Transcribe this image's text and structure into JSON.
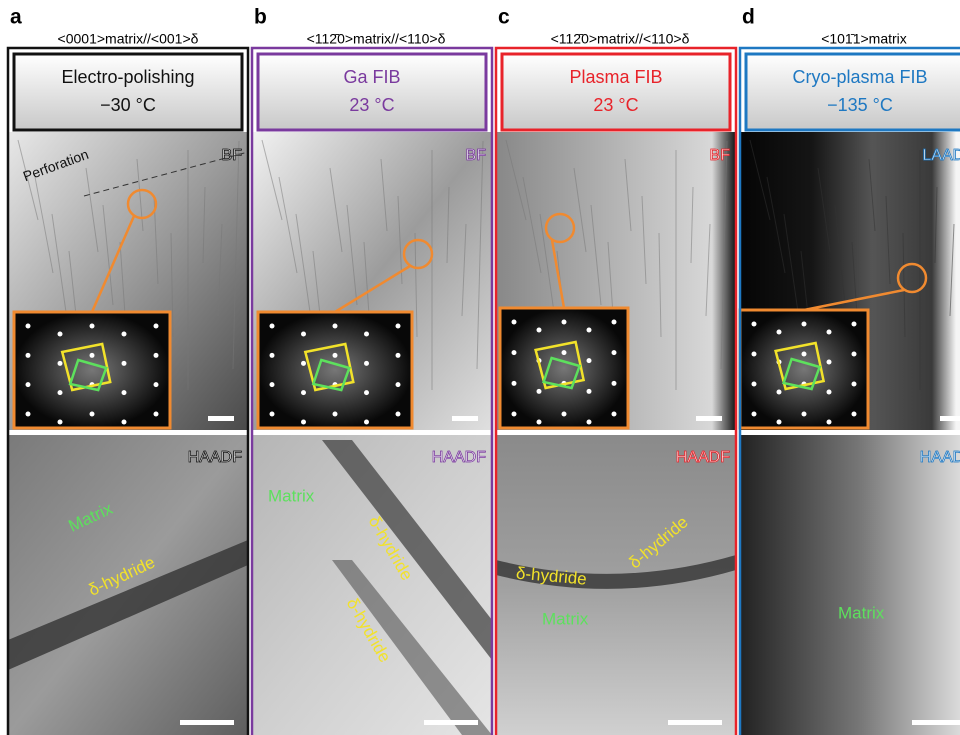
{
  "panels": [
    {
      "letter": "a",
      "orientation": "<0001>matrix//<001>δ",
      "method": "Electro-polishing",
      "temperature": "−30 °C",
      "top_label": "BF",
      "bottom_label": "HAADF",
      "top_annotations": [
        "Perforation"
      ],
      "bottom_annotations": [
        "Matrix",
        "δ-hydride"
      ]
    },
    {
      "letter": "b",
      "orientation": "<112̄0>matrix//<110>δ",
      "method": "Ga FIB",
      "temperature": "23 °C",
      "top_label": "BF",
      "bottom_label": "HAADF",
      "top_annotations": [],
      "bottom_annotations": [
        "Matrix",
        "δ-hydride",
        "δ-hydride"
      ]
    },
    {
      "letter": "c",
      "orientation": "<112̄0>matrix//<110>δ",
      "method": "Plasma FIB",
      "temperature": "23 °C",
      "top_label": "BF",
      "bottom_label": "HAADF",
      "top_annotations": [],
      "bottom_annotations": [
        "δ-hydride",
        "δ-hydride",
        "Matrix"
      ]
    },
    {
      "letter": "d",
      "orientation": "<101̄1>matrix",
      "method": "Cryo-plasma FIB",
      "temperature": "−135 °C",
      "top_label": "LAADF",
      "bottom_label": "HAADF",
      "top_annotations": [],
      "bottom_annotations": [
        "Matrix"
      ]
    }
  ]
}
